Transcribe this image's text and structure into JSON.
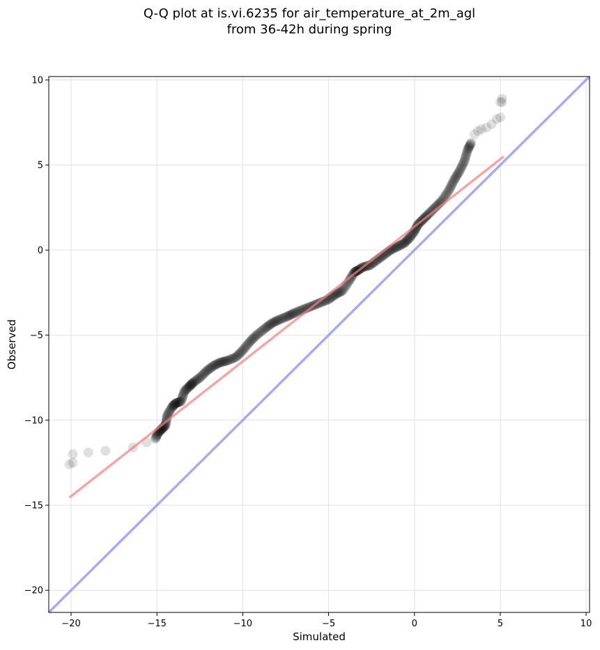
{
  "chart_data": {
    "type": "scatter",
    "title": [
      "Q-Q plot at is.vi.6235 for air_temperature_at_2m_agl",
      "from 36-42h during spring"
    ],
    "xlabel": "Simulated",
    "ylabel": "Observed",
    "xlim": [
      -21.3,
      10.2
    ],
    "ylim": [
      -21.3,
      10.2
    ],
    "xticks": [
      -20,
      -15,
      -10,
      -5,
      0,
      5,
      10
    ],
    "yticks": [
      -20,
      -15,
      -10,
      -5,
      0,
      5,
      10
    ],
    "xtick_labels": [
      "−20",
      "−15",
      "−10",
      "−5",
      "0",
      "5",
      "10"
    ],
    "ytick_labels": [
      "−20",
      "−15",
      "−10",
      "−5",
      "0",
      "5",
      "10"
    ],
    "grid": true,
    "colors": {
      "points": "#000000",
      "fit_line": "#f08080",
      "identity_line": "#8c8cf0",
      "grid": "#e6e6e6"
    },
    "fit_line": {
      "x": [
        -20.1,
        5.2
      ],
      "y": [
        -14.55,
        5.5
      ]
    },
    "identity_line": {
      "x": [
        -21.3,
        10.2
      ],
      "y": [
        -21.3,
        10.2
      ]
    },
    "points": {
      "x": [
        -20.1,
        -19.9,
        -19.9,
        -19.0,
        -18.0,
        -16.4,
        -15.6,
        -15.1,
        -14.9,
        -14.7,
        -14.5,
        -14.4,
        -14.1,
        -13.9,
        -13.6,
        -13.4,
        -13.1,
        -12.9,
        -12.5,
        -12.1,
        -11.7,
        -11.3,
        -10.9,
        -10.4,
        -10.0,
        -9.6,
        -9.2,
        -8.7,
        -8.3,
        -7.9,
        -7.4,
        -7.0,
        -6.5,
        -6.0,
        -5.5,
        -5.0,
        -4.6,
        -4.2,
        -3.8,
        -3.5,
        -3.3,
        -3.0,
        -2.6,
        -2.2,
        -1.8,
        -1.4,
        -1.0,
        -0.6,
        -0.3,
        0.0,
        0.2,
        0.5,
        0.8,
        1.2,
        1.6,
        2.0,
        2.3,
        2.6,
        2.9,
        3.1,
        3.3,
        3.5,
        3.7,
        3.9,
        4.2,
        4.5,
        4.8,
        5.0,
        5.0,
        5.1,
        5.1
      ],
      "y": [
        -12.6,
        -12.0,
        -12.5,
        -11.9,
        -11.8,
        -11.6,
        -11.3,
        -11.1,
        -10.7,
        -10.5,
        -10.3,
        -9.7,
        -9.2,
        -9.0,
        -8.9,
        -8.3,
        -8.0,
        -7.8,
        -7.5,
        -7.1,
        -6.8,
        -6.6,
        -6.5,
        -6.3,
        -5.9,
        -5.4,
        -5.0,
        -4.6,
        -4.3,
        -4.1,
        -3.9,
        -3.7,
        -3.5,
        -3.3,
        -3.1,
        -2.9,
        -2.6,
        -2.4,
        -1.8,
        -1.3,
        -1.2,
        -1.0,
        -0.9,
        -0.6,
        -0.3,
        0.0,
        0.2,
        0.4,
        0.7,
        1.1,
        1.5,
        1.8,
        2.1,
        2.5,
        2.9,
        3.5,
        4.1,
        4.6,
        5.2,
        5.9,
        6.3,
        6.8,
        7.0,
        7.1,
        7.2,
        7.4,
        7.7,
        7.8,
        8.7,
        8.9,
        8.7
      ]
    }
  }
}
